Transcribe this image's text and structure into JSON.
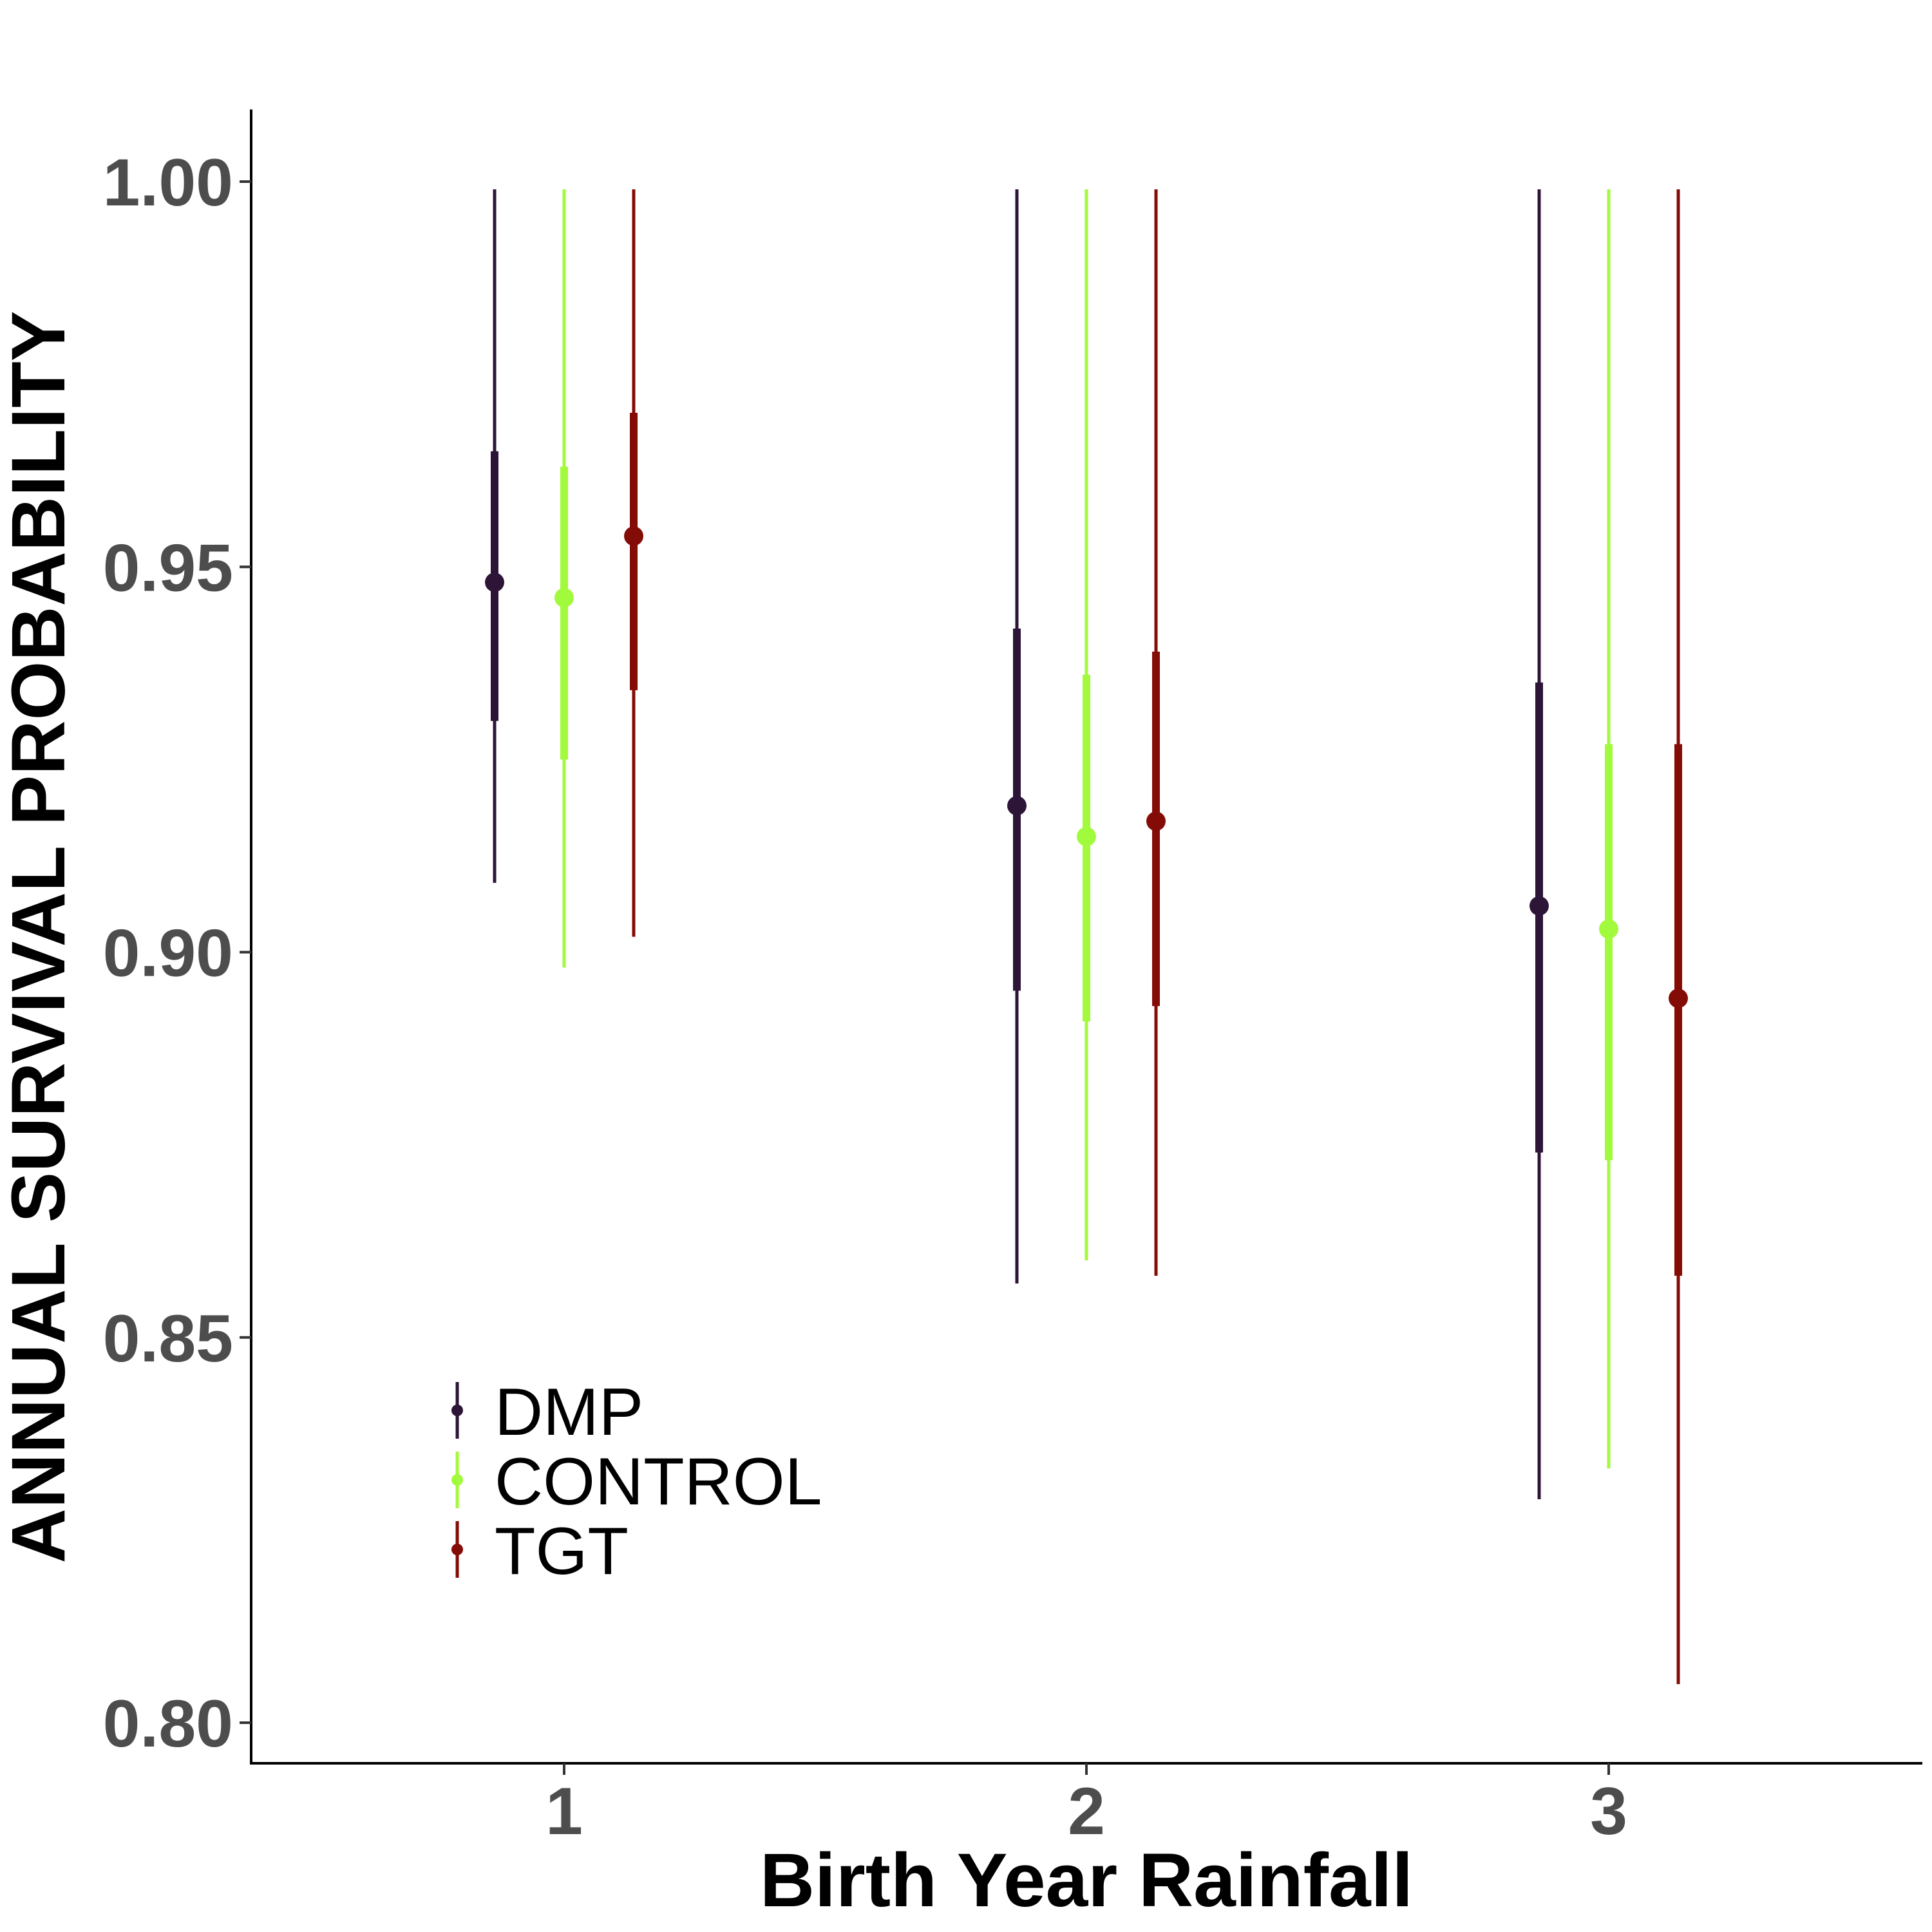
{
  "chart_data": {
    "type": "scatter",
    "xlabel": "Birth Year Rainfall",
    "ylabel": "ANNUAL SURVIVAL PROBABILITY",
    "categories": [
      "1",
      "2",
      "3"
    ],
    "ylim": [
      0.795,
      1.009
    ],
    "yticks": [
      "0.80",
      "0.85",
      "0.90",
      "0.95",
      "1.00"
    ],
    "grid": false,
    "legend_position": "bottom-left",
    "series": [
      {
        "name": "DMP",
        "color": "#2d1537",
        "points": [
          {
            "x": "1",
            "y": 0.948,
            "inner": [
              0.93,
              0.965
            ],
            "outer": [
              0.909,
              0.999
            ]
          },
          {
            "x": "2",
            "y": 0.919,
            "inner": [
              0.895,
              0.942
            ],
            "outer": [
              0.857,
              0.999
            ]
          },
          {
            "x": "3",
            "y": 0.906,
            "inner": [
              0.874,
              0.935
            ],
            "outer": [
              0.829,
              0.999
            ]
          }
        ]
      },
      {
        "name": "CONTROL",
        "color": "#a2fa3c",
        "points": [
          {
            "x": "1",
            "y": 0.946,
            "inner": [
              0.925,
              0.963
            ],
            "outer": [
              0.898,
              0.999
            ]
          },
          {
            "x": "2",
            "y": 0.915,
            "inner": [
              0.891,
              0.936
            ],
            "outer": [
              0.86,
              0.999
            ]
          },
          {
            "x": "3",
            "y": 0.903,
            "inner": [
              0.873,
              0.927
            ],
            "outer": [
              0.833,
              0.999
            ]
          }
        ]
      },
      {
        "name": "TGT",
        "color": "#840c07",
        "points": [
          {
            "x": "1",
            "y": 0.954,
            "inner": [
              0.934,
              0.97
            ],
            "outer": [
              0.902,
              0.999
            ]
          },
          {
            "x": "2",
            "y": 0.917,
            "inner": [
              0.893,
              0.939
            ],
            "outer": [
              0.858,
              0.999
            ]
          },
          {
            "x": "3",
            "y": 0.894,
            "inner": [
              0.858,
              0.927
            ],
            "outer": [
              0.805,
              0.999
            ]
          }
        ]
      }
    ]
  }
}
